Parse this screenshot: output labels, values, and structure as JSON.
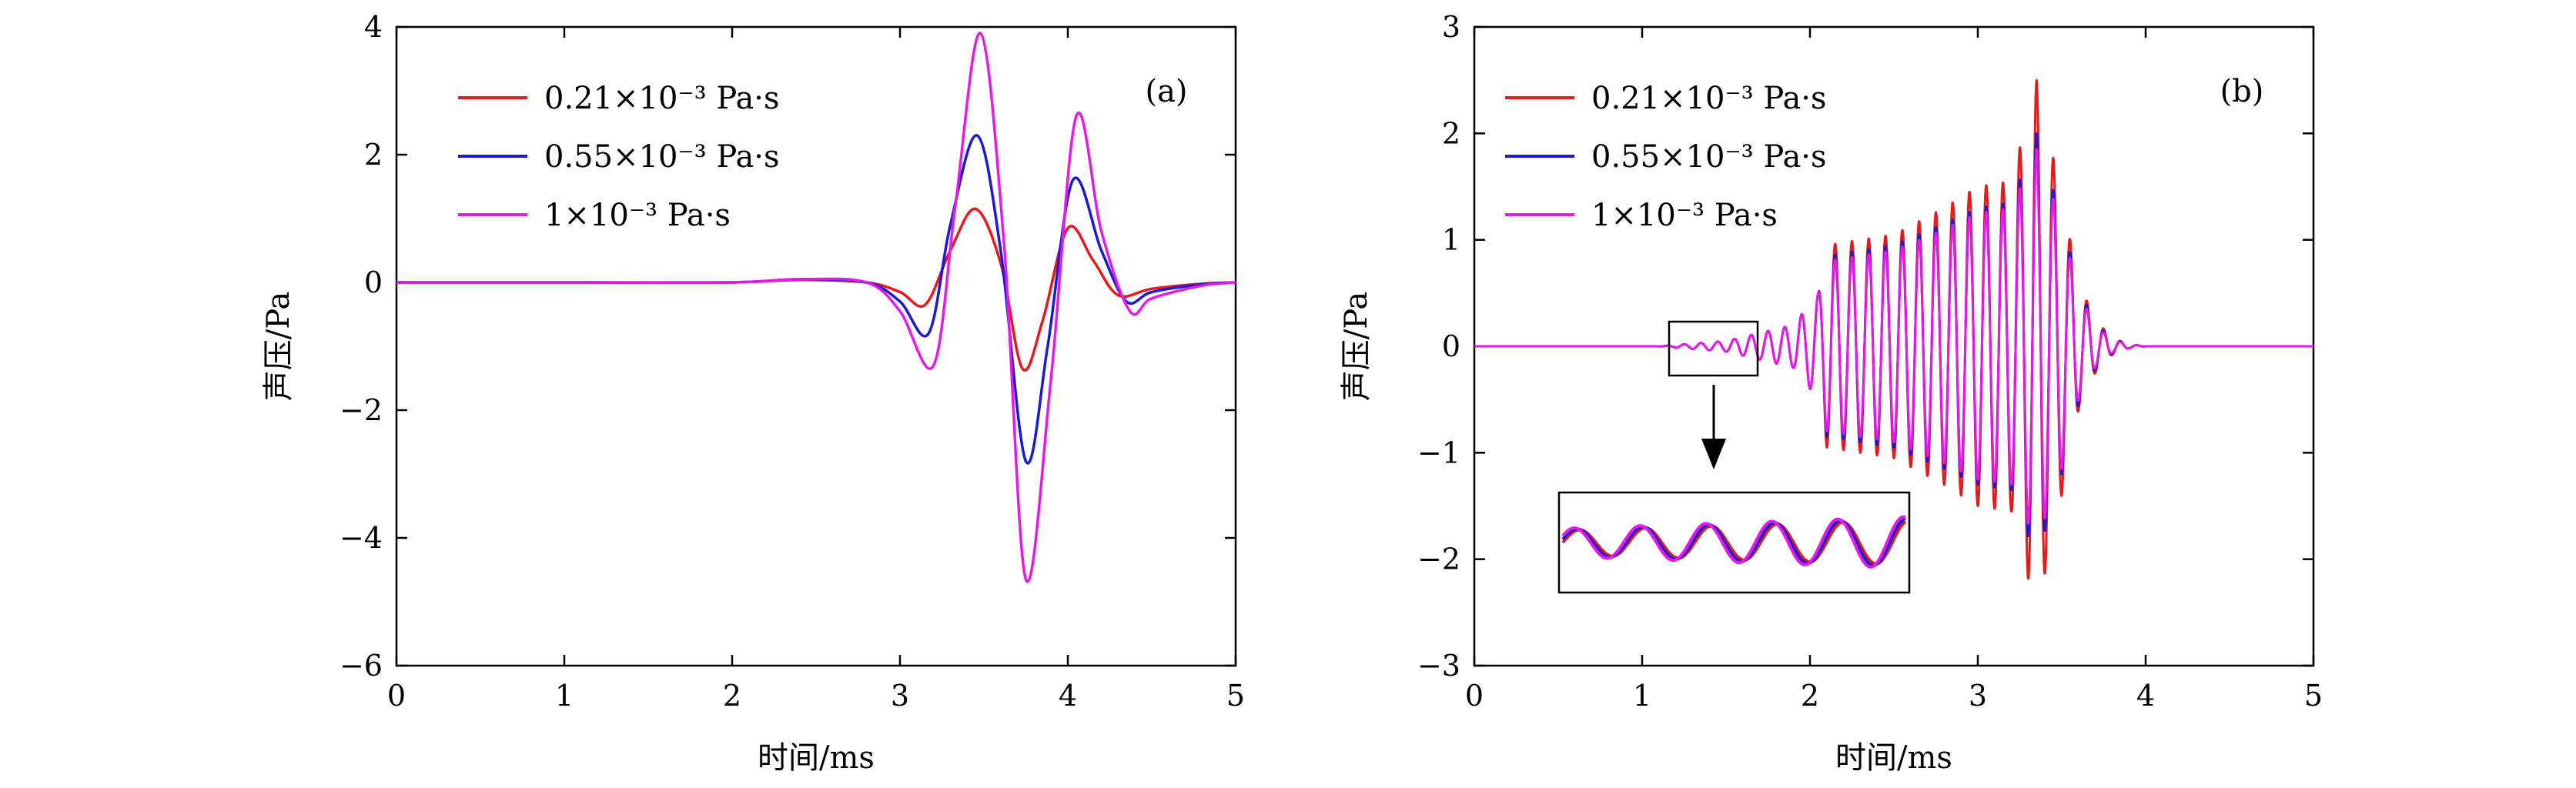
{
  "chart_data": [
    {
      "panel": "(a)",
      "type": "line",
      "xlabel": "时间/ms",
      "ylabel": "声压/Pa",
      "xlim": [
        0,
        5
      ],
      "ylim": [
        -6,
        4
      ],
      "xticks": [
        "0",
        "1",
        "2",
        "3",
        "4",
        "5"
      ],
      "yticks": [
        "−6",
        "−4",
        "−2",
        "0",
        "2",
        "4"
      ],
      "grid": false,
      "legend_position": "top-left",
      "series": [
        {
          "name": "0.21×10⁻³ Pa·s",
          "color": "#e41a1c",
          "x": [
            0,
            1,
            2,
            2.4,
            2.8,
            3.0,
            3.15,
            3.3,
            3.45,
            3.6,
            3.73,
            3.85,
            4.0,
            4.15,
            4.3,
            4.5,
            4.8,
            5.0
          ],
          "y": [
            0,
            0,
            0,
            0.04,
            0.0,
            -0.15,
            -0.35,
            0.5,
            1.15,
            0.3,
            -1.35,
            -0.6,
            0.85,
            0.35,
            -0.2,
            -0.1,
            -0.02,
            0
          ]
        },
        {
          "name": "0.55×10⁻³ Pa·s",
          "color": "#1a1ad4",
          "x": [
            0,
            1,
            2,
            2.4,
            2.8,
            3.0,
            3.17,
            3.3,
            3.46,
            3.6,
            3.75,
            3.88,
            4.03,
            4.2,
            4.35,
            4.5,
            4.8,
            5.0
          ],
          "y": [
            0,
            0,
            0,
            0.05,
            0.0,
            -0.3,
            -0.8,
            0.9,
            2.3,
            0.5,
            -2.8,
            -1.0,
            1.6,
            0.5,
            -0.3,
            -0.15,
            -0.03,
            0
          ]
        },
        {
          "name": "1×10⁻³ Pa·s",
          "color": "#e61ae6",
          "x": [
            0,
            1,
            2,
            2.4,
            2.8,
            3.0,
            3.2,
            3.33,
            3.48,
            3.62,
            3.75,
            3.9,
            4.05,
            4.2,
            4.37,
            4.5,
            4.8,
            5.0
          ],
          "y": [
            0,
            0,
            0,
            0.05,
            0.0,
            -0.45,
            -1.3,
            1.2,
            3.9,
            0.6,
            -4.65,
            -1.5,
            2.6,
            0.8,
            -0.45,
            -0.25,
            -0.05,
            0
          ]
        }
      ]
    },
    {
      "panel": "(b)",
      "type": "line",
      "xlabel": "时间/ms",
      "ylabel": "声压/Pa",
      "xlim": [
        0,
        5
      ],
      "ylim": [
        -3,
        3
      ],
      "xticks": [
        "0",
        "1",
        "2",
        "3",
        "4",
        "5"
      ],
      "yticks": [
        "−3",
        "−2",
        "−1",
        "0",
        "1",
        "2",
        "3"
      ],
      "grid": false,
      "legend_position": "top-left",
      "oscillation_frequency_khz": 10,
      "envelope": {
        "t": [
          0,
          1.1,
          1.5,
          1.9,
          2.05,
          2.1,
          2.5,
          2.8,
          3.0,
          3.2,
          3.35,
          3.5,
          3.6,
          3.7,
          3.8,
          3.9,
          4.0,
          5.0
        ],
        "amplitude_by_series": [
          [
            0,
            0.0,
            0.05,
            0.2,
            0.5,
            0.95,
            1.05,
            1.3,
            1.5,
            1.55,
            2.5,
            1.4,
            0.6,
            0.25,
            0.08,
            0.02,
            0,
            0
          ],
          [
            0,
            0.0,
            0.05,
            0.2,
            0.5,
            0.85,
            0.95,
            1.15,
            1.3,
            1.35,
            2.0,
            1.2,
            0.55,
            0.22,
            0.07,
            0.02,
            0,
            0
          ],
          [
            0,
            0.0,
            0.05,
            0.2,
            0.5,
            0.8,
            0.9,
            1.1,
            1.25,
            1.3,
            1.85,
            1.15,
            0.5,
            0.2,
            0.06,
            0.02,
            0,
            0
          ]
        ]
      },
      "series": [
        {
          "name": "0.21×10⁻³ Pa·s",
          "color": "#e41a1c"
        },
        {
          "name": "0.55×10⁻³ Pa·s",
          "color": "#1a1ad4"
        },
        {
          "name": "1×10⁻³ Pa·s",
          "color": "#e61ae6"
        }
      ],
      "inset": {
        "source_xlim": [
          1.17,
          1.72
        ],
        "source_ylim": [
          -0.28,
          0.22
        ],
        "annotation": "zoomed view of early low-amplitude oscillations"
      }
    }
  ]
}
